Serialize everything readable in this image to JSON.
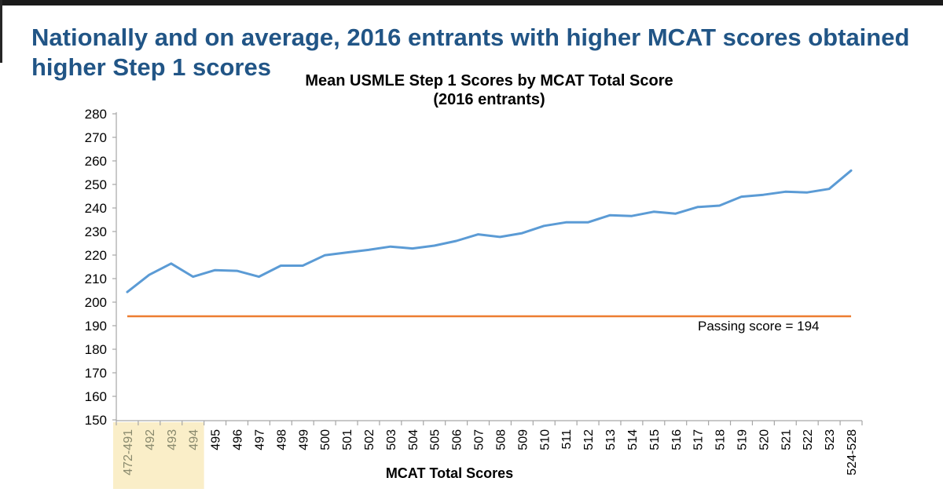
{
  "page": {
    "slide_title": "Nationally and on average, 2016 entrants with higher MCAT scores obtained higher Step 1 scores"
  },
  "chart_data": {
    "type": "line",
    "title": "Mean USMLE Step 1 Scores by MCAT Total Score",
    "subtitle": "(2016 entrants)",
    "xlabel": "MCAT Total Scores",
    "ylabel": "",
    "ylim": [
      150,
      280
    ],
    "ytick_step": 10,
    "grid": false,
    "legend": "none",
    "categories": [
      "472-491",
      "492",
      "493",
      "494",
      "495",
      "496",
      "497",
      "498",
      "499",
      "500",
      "501",
      "502",
      "503",
      "504",
      "505",
      "506",
      "507",
      "508",
      "509",
      "510",
      "511",
      "512",
      "513",
      "514",
      "515",
      "516",
      "517",
      "518",
      "519",
      "520",
      "521",
      "522",
      "523",
      "524-528"
    ],
    "series": [
      {
        "name": "Mean USMLE Step 1 score",
        "color": "#5B9BD5",
        "values": [
          204.3,
          211.6,
          216.4,
          210.8,
          213.6,
          213.3,
          210.8,
          215.5,
          215.5,
          219.9,
          221.1,
          222.2,
          223.6,
          222.8,
          224.0,
          226.0,
          228.8,
          227.7,
          229.3,
          232.4,
          233.9,
          233.9,
          236.9,
          236.6,
          238.4,
          237.6,
          240.4,
          241.0,
          244.8,
          245.6,
          246.9,
          246.6,
          248.1,
          255.9
        ]
      }
    ],
    "reference_line": {
      "label": "Passing score = 194",
      "value": 194,
      "color": "#ED7D31"
    },
    "highlighted_categories": [
      "472-491",
      "492",
      "493",
      "494"
    ],
    "highlight_color": "#FAEEC8",
    "highlight_label_color": "#8A8A6E",
    "axis_color": "#A6A6A6"
  }
}
